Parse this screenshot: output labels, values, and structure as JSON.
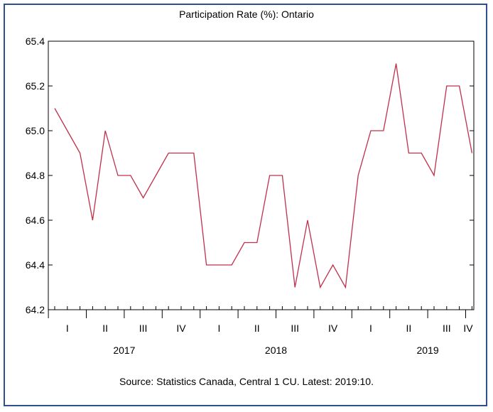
{
  "chart_data": {
    "type": "line",
    "title": "Participation Rate (%): Ontario",
    "source": "Source: Statistics Canada, Central 1 CU. Latest: 2019:10.",
    "xlabel": "",
    "ylabel": "",
    "ylim": [
      64.2,
      65.4
    ],
    "yticks": [
      "64.2",
      "64.4",
      "64.6",
      "64.8",
      "65.0",
      "65.2",
      "65.4"
    ],
    "quarter_labels": [
      "I",
      "II",
      "III",
      "IV",
      "I",
      "II",
      "III",
      "IV",
      "I",
      "II",
      "III",
      "IV"
    ],
    "year_labels": [
      "2017",
      "2018",
      "2019"
    ],
    "grid": false,
    "series_color": "#c0304a",
    "x": [
      "2017-01",
      "2017-02",
      "2017-03",
      "2017-04",
      "2017-05",
      "2017-06",
      "2017-07",
      "2017-08",
      "2017-09",
      "2017-10",
      "2017-11",
      "2017-12",
      "2018-01",
      "2018-02",
      "2018-03",
      "2018-04",
      "2018-05",
      "2018-06",
      "2018-07",
      "2018-08",
      "2018-09",
      "2018-10",
      "2018-11",
      "2018-12",
      "2019-01",
      "2019-02",
      "2019-03",
      "2019-04",
      "2019-05",
      "2019-06",
      "2019-07",
      "2019-08",
      "2019-09",
      "2019-10"
    ],
    "series": [
      {
        "values": [
          65.1,
          65.0,
          64.9,
          64.6,
          65.0,
          64.8,
          64.8,
          64.7,
          64.8,
          64.9,
          64.9,
          64.9,
          64.4,
          64.4,
          64.4,
          64.5,
          64.5,
          64.8,
          64.8,
          64.3,
          64.6,
          64.3,
          64.4,
          64.3,
          64.8,
          65.0,
          65.0,
          65.3,
          64.9,
          64.9,
          64.8,
          65.2,
          65.2,
          64.9
        ]
      }
    ]
  }
}
